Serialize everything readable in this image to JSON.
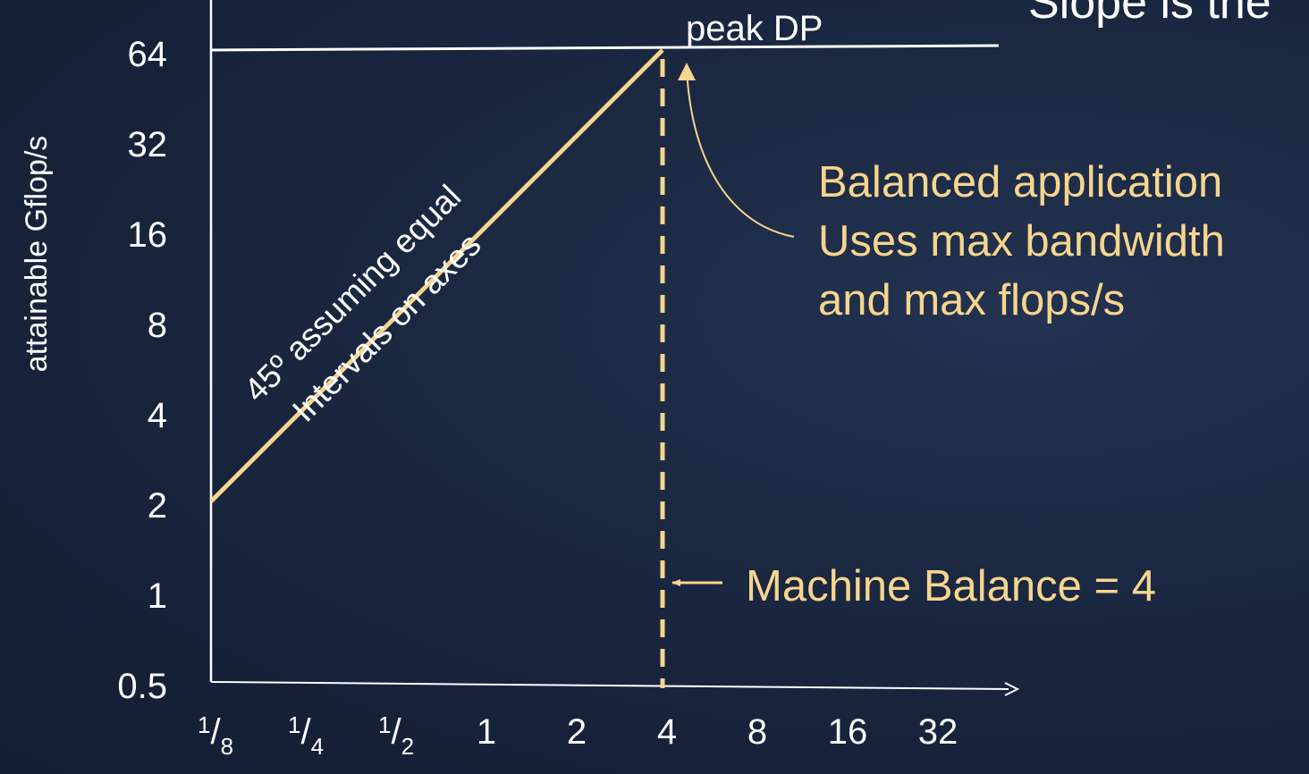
{
  "chart_data": {
    "type": "line",
    "title": "",
    "xlabel": "",
    "ylabel": "attainable Gflop/s",
    "x_scale": "log2",
    "y_scale": "log2",
    "x_ticks": [
      {
        "value": 0.125,
        "num": "1",
        "den": "8"
      },
      {
        "value": 0.25,
        "num": "1",
        "den": "4"
      },
      {
        "value": 0.5,
        "num": "1",
        "den": "2"
      },
      {
        "value": 1,
        "label": "1"
      },
      {
        "value": 2,
        "label": "2"
      },
      {
        "value": 4,
        "label": "4"
      },
      {
        "value": 8,
        "label": "8"
      },
      {
        "value": 16,
        "label": "16"
      },
      {
        "value": 32,
        "label": "32"
      }
    ],
    "y_ticks": [
      {
        "value": 0.5,
        "label": "0.5"
      },
      {
        "value": 1,
        "label": "1"
      },
      {
        "value": 2,
        "label": "2"
      },
      {
        "value": 4,
        "label": "4"
      },
      {
        "value": 8,
        "label": "8"
      },
      {
        "value": 16,
        "label": "16"
      },
      {
        "value": 32,
        "label": "32"
      },
      {
        "value": 64,
        "label": "64"
      }
    ],
    "xlim": [
      0.125,
      32
    ],
    "ylim": [
      0.5,
      64
    ],
    "series": [
      {
        "color": "#f6d58e",
        "points": [
          [
            0.125,
            2
          ],
          [
            4,
            64
          ]
        ]
      },
      {
        "color": "#ffffff",
        "points": [
          [
            4,
            64
          ],
          [
            64,
            64
          ]
        ]
      }
    ],
    "machine_balance": 4,
    "annotations": {
      "peak_label": "peak DP",
      "slope_line1": "45º assuming equal",
      "slope_line2": "Intervals on axes",
      "balanced_lines": [
        "Balanced application",
        "Uses max bandwidth",
        "and max flops/s"
      ],
      "machine_balance_label": "Machine Balance = 4",
      "corner_text": "Slope is the"
    },
    "colors": {
      "accent": "#f6d58e",
      "axis": "#ffffff",
      "background": "#1a2740"
    }
  }
}
